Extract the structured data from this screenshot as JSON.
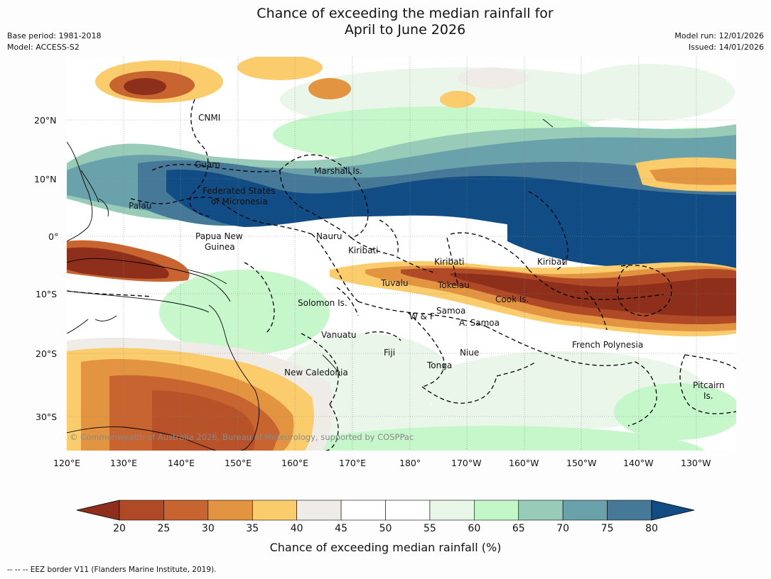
{
  "header": {
    "title_line1": "Chance of exceeding the median rainfall for",
    "title_line2": "April to June 2026",
    "base_period": "Base period: 1981-2018",
    "model": "Model: ACCESS-S2",
    "model_run": "Model run: 12/01/2026",
    "issued": "Issued: 14/01/2026"
  },
  "map": {
    "lat_labels": [
      "20°N",
      "10°N",
      "0°",
      "10°S",
      "20°S",
      "30°S"
    ],
    "lon_labels": [
      "120°E",
      "130°E",
      "140°E",
      "150°E",
      "160°E",
      "170°E",
      "180°",
      "170°W",
      "160°W",
      "150°W",
      "140°W",
      "130°W"
    ],
    "regions": {
      "cnmi": "CNMI",
      "guam": "Guam",
      "marshall": "Marshall Is.",
      "fsm_1": "Federated States",
      "fsm_2": "of Micronesia",
      "palau": "Palau",
      "nauru": "Nauru",
      "png_1": "Papua New",
      "png_2": "Guinea",
      "kiribati_w": "Kiribati",
      "kiribati_c": "Kiribati",
      "kiribati_e": "Kiribati",
      "tuvalu": "Tuvalu",
      "tokelau": "Tokelau",
      "cook": "Cook Is.",
      "solomon": "Solomon Is.",
      "wf": "W & F",
      "samoa": "Samoa",
      "asamoa": "A. Samoa",
      "vanuatu": "Vanuatu",
      "fiji": "Fiji",
      "niue": "Niue",
      "frpoly": "French Polynesia",
      "tonga": "Tonga",
      "newcal": "New Caledonia",
      "pitcairn_1": "Pitcairn",
      "pitcairn_2": "Is."
    },
    "copyright": "© Commonwealth of Australia 2026, Bureau of Meteorology, supported by COSPPac"
  },
  "colorbar": {
    "ticks": [
      "20",
      "25",
      "30",
      "35",
      "40",
      "45",
      "50",
      "55",
      "60",
      "65",
      "70",
      "75",
      "80"
    ],
    "colors": [
      "#8e2f1b",
      "#b04a26",
      "#c8642f",
      "#e29440",
      "#fbcc6c",
      "#efebe6",
      "#ffffff",
      "#ffffff",
      "#e8f6e8",
      "#c4f7c8",
      "#98cbb8",
      "#6aa2ab",
      "#457997",
      "#124c84"
    ],
    "label": "Chance of exceeding median rainfall (%)"
  },
  "footer": {
    "eez": "--  --  -- EEZ border V11 (Flanders Marine Institute, 2019)."
  }
}
